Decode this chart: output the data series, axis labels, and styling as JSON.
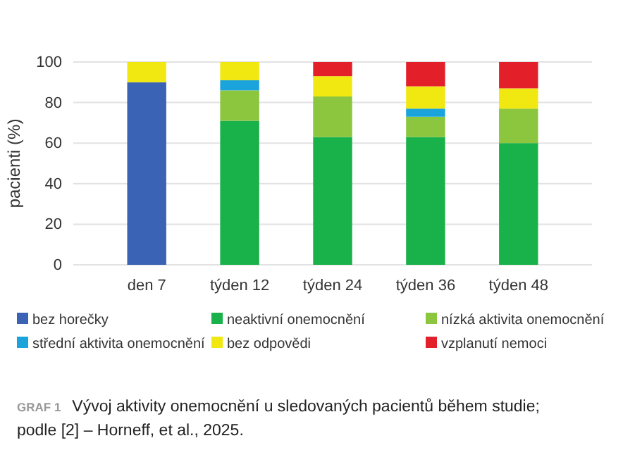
{
  "chart_data": {
    "type": "bar",
    "stacked": true,
    "ylabel": "pacienti (%)",
    "categories": [
      "den 7",
      "týden 12",
      "týden 24",
      "týden 36",
      "týden 48"
    ],
    "series": [
      {
        "name": "bez horečky",
        "color": "#3a62b5",
        "values": [
          90,
          0,
          0,
          0,
          0
        ]
      },
      {
        "name": "neaktivní onemocnění",
        "color": "#19b14a",
        "values": [
          0,
          71,
          63,
          63,
          60
        ]
      },
      {
        "name": "nízká aktivita onemocnění",
        "color": "#8cc63f",
        "values": [
          0,
          15,
          20,
          10,
          17
        ]
      },
      {
        "name": "střední aktivita onemocnění",
        "color": "#1ba3dc",
        "values": [
          0,
          5,
          0,
          4,
          0
        ]
      },
      {
        "name": "bez odpovědi",
        "color": "#f2e811",
        "values": [
          10,
          9,
          10,
          11,
          10
        ]
      },
      {
        "name": "vzplanutí nemoci",
        "color": "#e3202a",
        "values": [
          0,
          0,
          7,
          12,
          13
        ]
      }
    ],
    "ylim": [
      0,
      100
    ],
    "yticks": [
      0,
      20,
      40,
      60,
      80,
      100
    ],
    "grid": true,
    "legend": "bottom",
    "annotations": [
      "GRAF 1",
      "Vývoj aktivity onemocnění u sledovaných pacientů během studie; podle [2] – Horneff, et al., 2025."
    ]
  }
}
